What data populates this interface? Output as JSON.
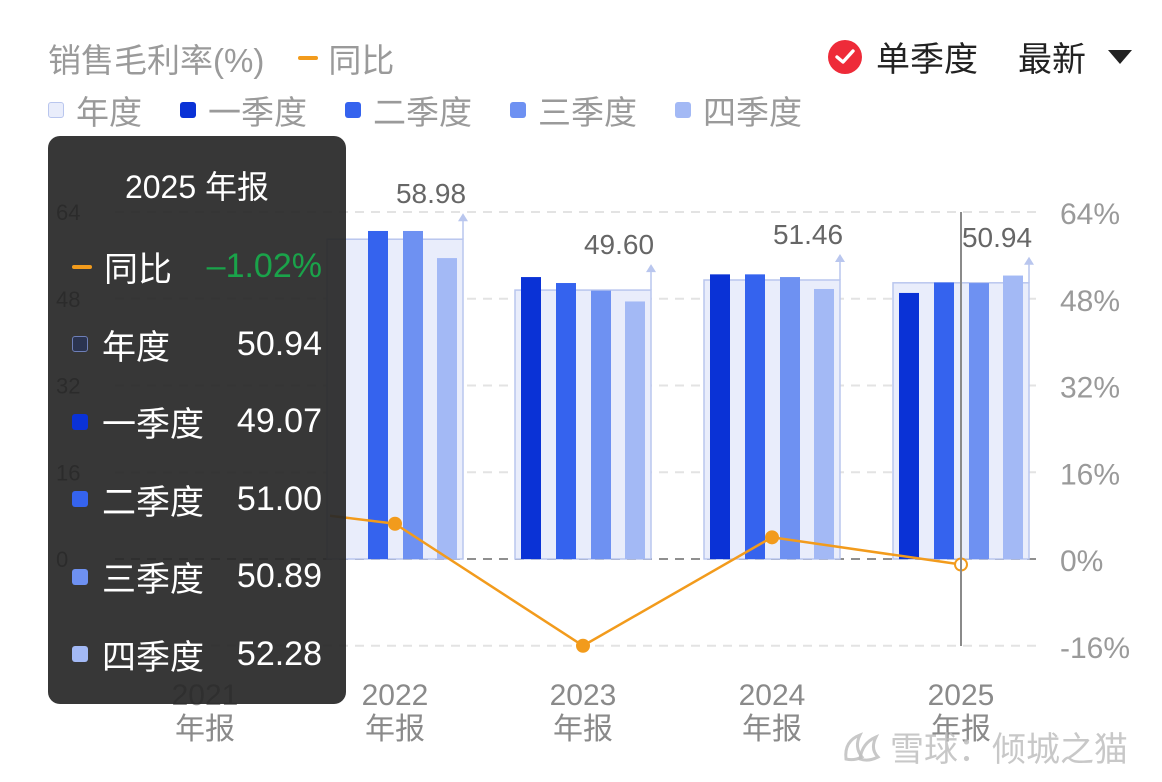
{
  "header": {
    "title": "销售毛利率(%)",
    "yoy_label": "同比",
    "mode_label": "单季度",
    "range_label": "最新"
  },
  "colors": {
    "annual_fill": "#e9edfb",
    "annual_border": "#b9c6ee",
    "q1": "#0a32d6",
    "q2": "#3563ee",
    "q3": "#6e91f2",
    "q4": "#a3b9f5",
    "yoy": "#f29b1c",
    "tooltip_negative": "#1aa34a"
  },
  "tooltip": {
    "title": "2025 年报",
    "rows": [
      {
        "label": "同比",
        "value": "–1.02%"
      },
      {
        "label": "年度",
        "value": "50.94"
      },
      {
        "label": "一季度",
        "value": "49.07"
      },
      {
        "label": "二季度",
        "value": "51.00"
      },
      {
        "label": "三季度",
        "value": "50.89"
      },
      {
        "label": "四季度",
        "value": "52.28"
      }
    ]
  },
  "watermark": "雪球：倾城之猫",
  "chart_data": {
    "type": "bar",
    "categories": [
      {
        "year": "2021",
        "period": "年报"
      },
      {
        "year": "2022",
        "period": "年报"
      },
      {
        "year": "2023",
        "period": "年报"
      },
      {
        "year": "2024",
        "period": "年报"
      },
      {
        "year": "2025",
        "period": "年报"
      }
    ],
    "annual": [
      null,
      58.98,
      49.6,
      51.46,
      50.94
    ],
    "annual_labels": [
      "",
      "58.98",
      "49.60",
      "51.46",
      "50.94"
    ],
    "series": [
      {
        "name": "年度",
        "values": [
          null,
          58.98,
          49.6,
          51.46,
          50.94
        ]
      },
      {
        "name": "一季度",
        "values": [
          null,
          null,
          52.0,
          52.5,
          49.07
        ]
      },
      {
        "name": "二季度",
        "values": [
          null,
          60.5,
          50.9,
          52.5,
          51.0
        ]
      },
      {
        "name": "三季度",
        "values": [
          null,
          60.5,
          49.5,
          52.0,
          50.89
        ]
      },
      {
        "name": "四季度",
        "values": [
          null,
          55.5,
          47.5,
          49.8,
          52.28
        ]
      }
    ],
    "yoy": {
      "name": "同比",
      "values": [
        null,
        6.5,
        -16.0,
        4.0,
        -1.02
      ]
    },
    "y_axis_right": {
      "ticks": [
        "64%",
        "48%",
        "32%",
        "16%",
        "0%",
        "-16%"
      ],
      "range": [
        -16,
        64
      ]
    },
    "y_axis_left_ticks": [
      "64",
      "48",
      "32",
      "16",
      "0"
    ],
    "grid": true,
    "selected_category": "2025"
  }
}
